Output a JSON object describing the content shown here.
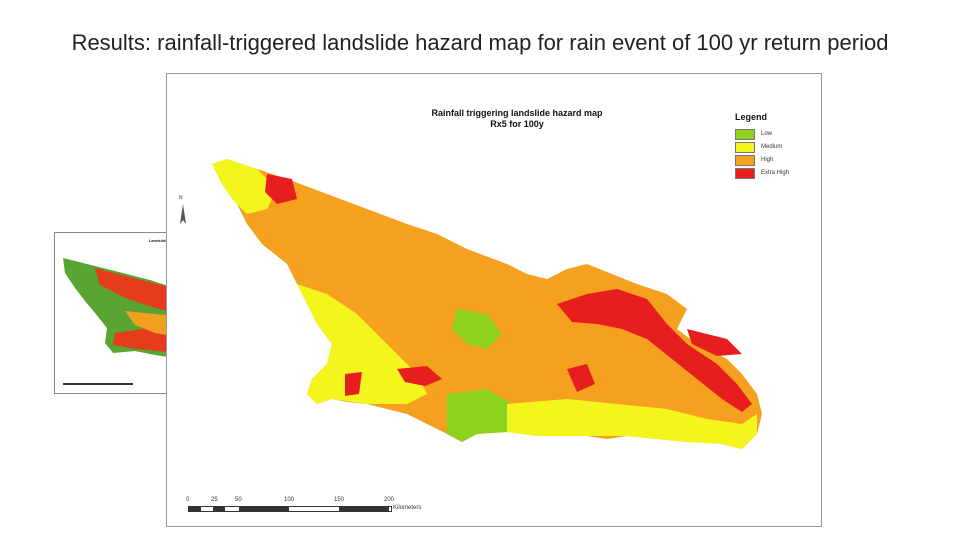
{
  "slide": {
    "title": "Results: rainfall-triggered landslide hazard map for rain event of 100 yr return period"
  },
  "main_map": {
    "title_line1": "Rainfall triggering landslide hazard map",
    "title_line2": "Rx5 for 100y",
    "legend_title": "Legend",
    "legend": [
      {
        "label": "Low",
        "color": "#8cd21e"
      },
      {
        "label": "Medium",
        "color": "#f5f51e"
      },
      {
        "label": "High",
        "color": "#f5a01e"
      },
      {
        "label": "Extra High",
        "color": "#e61e1e"
      }
    ],
    "scale_ticks": [
      "0",
      "25",
      "50",
      "100",
      "150",
      "200"
    ],
    "scale_unit": "Kilometers",
    "north_label": "N"
  },
  "inset_map": {
    "title": "Landslide hazard map",
    "palette": {
      "green": "#5aa532",
      "red": "#e63c1e",
      "orange": "#f0a01e",
      "yellow": "#e6e628"
    }
  }
}
